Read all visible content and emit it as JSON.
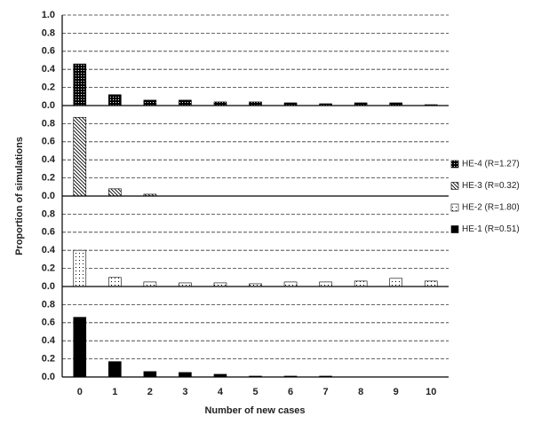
{
  "chart_data": [
    {
      "type": "bar",
      "y_label": "Proportion of simulations",
      "ylim": [
        0,
        1.0
      ],
      "yticks": [
        {
          "value": 0,
          "label": "0.0"
        },
        0.2,
        0.4,
        0.6,
        0.8,
        {
          "value": 1,
          "label": "1.0"
        }
      ],
      "grid": true,
      "series": [
        {
          "name": "HE-4 (R=1.27)",
          "color": "#000000",
          "pattern": "dense-dots",
          "values": [
            0.46,
            0.12,
            0.06,
            0.06,
            0.04,
            0.04,
            0.03,
            0.02,
            0.03,
            0.03,
            0.01
          ]
        }
      ]
    },
    {
      "type": "bar",
      "ylim": [
        0,
        1.0
      ],
      "yticks": [
        {
          "value": 0,
          "label": "0.0"
        },
        0.2,
        0.4,
        0.6,
        0.8
      ],
      "grid": true,
      "series": [
        {
          "name": "HE-3 (R=0.32)",
          "color": "#000000",
          "pattern": "hatch",
          "values": [
            0.87,
            0.08,
            0.02,
            0,
            0,
            0,
            0,
            0,
            0,
            0,
            0
          ]
        }
      ]
    },
    {
      "type": "bar",
      "ylim": [
        0,
        1.0
      ],
      "yticks": [
        {
          "value": 0,
          "label": "0.0"
        },
        0.2,
        0.4,
        0.6,
        0.8
      ],
      "grid": true,
      "series": [
        {
          "name": "HE-2 (R=1.80)",
          "color": "#000000",
          "pattern": "dots",
          "values": [
            0.4,
            0.1,
            0.05,
            0.04,
            0.04,
            0.03,
            0.05,
            0.05,
            0.06,
            0.09,
            0.06
          ]
        }
      ]
    },
    {
      "type": "bar",
      "x_label": "Number of new cases",
      "categories": [
        "0",
        "1",
        "2",
        "3",
        "4",
        "5",
        "6",
        "7",
        "8",
        "9",
        "10"
      ],
      "ylim": [
        0,
        1.0
      ],
      "yticks": [
        {
          "value": 0,
          "label": "0.0"
        },
        0.2,
        0.4,
        0.6,
        0.8
      ],
      "grid": true,
      "series": [
        {
          "name": "HE-1 (R=0.51)",
          "color": "#000000",
          "pattern": "solid",
          "values": [
            0.66,
            0.17,
            0.06,
            0.05,
            0.03,
            0.01,
            0.01,
            0.01,
            0,
            0,
            0
          ]
        }
      ]
    }
  ]
}
